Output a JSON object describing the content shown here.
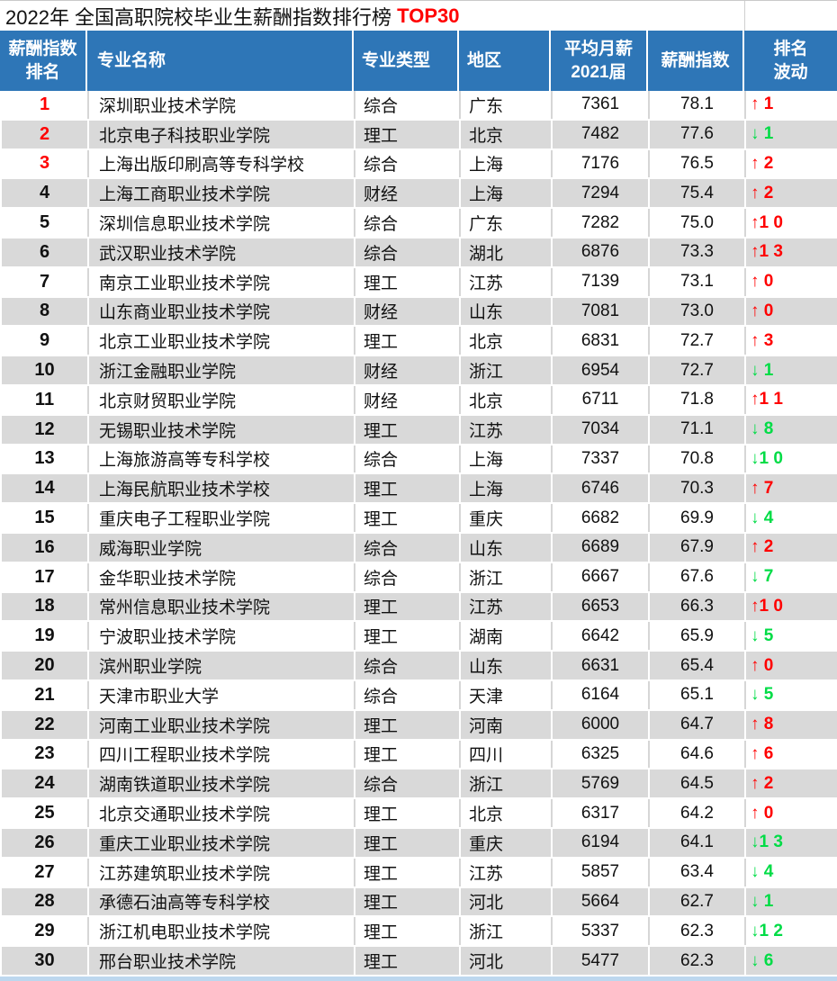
{
  "title": {
    "text": "2022年 全国高职院校毕业生薪酬指数排行榜 ",
    "highlight": "TOP30"
  },
  "colors": {
    "header_bg": "#2e76b7",
    "row_alt": "#d9d9d9",
    "rank_top3": "#ff0000",
    "up": "#ff0000",
    "down": "#00dc46",
    "bottom_strip": "#bdd7ee",
    "highlight": "#ff0000"
  },
  "table": {
    "columns": [
      {
        "id": "rank",
        "label": "薪酬指数\n排名"
      },
      {
        "id": "name",
        "label": "专业名称"
      },
      {
        "id": "type",
        "label": "专业类型"
      },
      {
        "id": "region",
        "label": "地区"
      },
      {
        "id": "salary",
        "label": "平均月薪\n2021届"
      },
      {
        "id": "index",
        "label": "薪酬指数"
      },
      {
        "id": "fluct",
        "label": "排名\n波动"
      }
    ],
    "rows": [
      {
        "rank": 1,
        "name": "深圳职业技术学院",
        "type": "综合",
        "region": "广东",
        "salary": "7361",
        "index": "78.1",
        "fluct": "↑ 1",
        "dir": "up"
      },
      {
        "rank": 2,
        "name": "北京电子科技职业学院",
        "type": "理工",
        "region": "北京",
        "salary": "7482",
        "index": "77.6",
        "fluct": "↓ 1",
        "dir": "down"
      },
      {
        "rank": 3,
        "name": "上海出版印刷高等专科学校",
        "type": "综合",
        "region": "上海",
        "salary": "7176",
        "index": "76.5",
        "fluct": "↑ 2",
        "dir": "up"
      },
      {
        "rank": 4,
        "name": "上海工商职业技术学院",
        "type": "财经",
        "region": "上海",
        "salary": "7294",
        "index": "75.4",
        "fluct": "↑ 2",
        "dir": "up"
      },
      {
        "rank": 5,
        "name": "深圳信息职业技术学院",
        "type": "综合",
        "region": "广东",
        "salary": "7282",
        "index": "75.0",
        "fluct": "↑1 0",
        "dir": "up"
      },
      {
        "rank": 6,
        "name": "武汉职业技术学院",
        "type": "综合",
        "region": "湖北",
        "salary": "6876",
        "index": "73.3",
        "fluct": "↑1 3",
        "dir": "up"
      },
      {
        "rank": 7,
        "name": "南京工业职业技术学院",
        "type": "理工",
        "region": "江苏",
        "salary": "7139",
        "index": "73.1",
        "fluct": "↑ 0",
        "dir": "up"
      },
      {
        "rank": 8,
        "name": "山东商业职业技术学院",
        "type": "财经",
        "region": "山东",
        "salary": "7081",
        "index": "73.0",
        "fluct": "↑ 0",
        "dir": "up"
      },
      {
        "rank": 9,
        "name": "北京工业职业技术学院",
        "type": "理工",
        "region": "北京",
        "salary": "6831",
        "index": "72.7",
        "fluct": "↑ 3",
        "dir": "up"
      },
      {
        "rank": 10,
        "name": "浙江金融职业学院",
        "type": "财经",
        "region": "浙江",
        "salary": "6954",
        "index": "72.7",
        "fluct": "↓ 1",
        "dir": "down"
      },
      {
        "rank": 11,
        "name": "北京财贸职业学院",
        "type": "财经",
        "region": "北京",
        "salary": "6711",
        "index": "71.8",
        "fluct": "↑1 1",
        "dir": "up"
      },
      {
        "rank": 12,
        "name": "无锡职业技术学院",
        "type": "理工",
        "region": "江苏",
        "salary": "7034",
        "index": "71.1",
        "fluct": "↓ 8",
        "dir": "down"
      },
      {
        "rank": 13,
        "name": "上海旅游高等专科学校",
        "type": "综合",
        "region": "上海",
        "salary": "7337",
        "index": "70.8",
        "fluct": "↓1 0",
        "dir": "down"
      },
      {
        "rank": 14,
        "name": "上海民航职业技术学校",
        "type": "理工",
        "region": "上海",
        "salary": "6746",
        "index": "70.3",
        "fluct": "↑ 7",
        "dir": "up"
      },
      {
        "rank": 15,
        "name": "重庆电子工程职业学院",
        "type": "理工",
        "region": "重庆",
        "salary": "6682",
        "index": "69.9",
        "fluct": "↓ 4",
        "dir": "down"
      },
      {
        "rank": 16,
        "name": "威海职业学院",
        "type": "综合",
        "region": "山东",
        "salary": "6689",
        "index": "67.9",
        "fluct": "↑ 2",
        "dir": "up"
      },
      {
        "rank": 17,
        "name": "金华职业技术学院",
        "type": "综合",
        "region": "浙江",
        "salary": "6667",
        "index": "67.6",
        "fluct": "↓ 7",
        "dir": "down"
      },
      {
        "rank": 18,
        "name": "常州信息职业技术学院",
        "type": "理工",
        "region": "江苏",
        "salary": "6653",
        "index": "66.3",
        "fluct": "↑1 0",
        "dir": "up"
      },
      {
        "rank": 19,
        "name": "宁波职业技术学院",
        "type": "理工",
        "region": "湖南",
        "salary": "6642",
        "index": "65.9",
        "fluct": "↓ 5",
        "dir": "down"
      },
      {
        "rank": 20,
        "name": "滨州职业学院",
        "type": "综合",
        "region": "山东",
        "salary": "6631",
        "index": "65.4",
        "fluct": "↑ 0",
        "dir": "up"
      },
      {
        "rank": 21,
        "name": "天津市职业大学",
        "type": "综合",
        "region": "天津",
        "salary": "6164",
        "index": "65.1",
        "fluct": "↓ 5",
        "dir": "down"
      },
      {
        "rank": 22,
        "name": "河南工业职业技术学院",
        "type": "理工",
        "region": "河南",
        "salary": "6000",
        "index": "64.7",
        "fluct": "↑ 8",
        "dir": "up"
      },
      {
        "rank": 23,
        "name": "四川工程职业技术学院",
        "type": "理工",
        "region": "四川",
        "salary": "6325",
        "index": "64.6",
        "fluct": "↑ 6",
        "dir": "up"
      },
      {
        "rank": 24,
        "name": "湖南铁道职业技术学院",
        "type": "综合",
        "region": "浙江",
        "salary": "5769",
        "index": "64.5",
        "fluct": "↑ 2",
        "dir": "up"
      },
      {
        "rank": 25,
        "name": "北京交通职业技术学院",
        "type": "理工",
        "region": "北京",
        "salary": "6317",
        "index": "64.2",
        "fluct": "↑ 0",
        "dir": "up"
      },
      {
        "rank": 26,
        "name": "重庆工业职业技术学院",
        "type": "理工",
        "region": "重庆",
        "salary": "6194",
        "index": "64.1",
        "fluct": "↓1 3",
        "dir": "down"
      },
      {
        "rank": 27,
        "name": "江苏建筑职业技术学院",
        "type": "理工",
        "region": "江苏",
        "salary": "5857",
        "index": "63.4",
        "fluct": "↓ 4",
        "dir": "down"
      },
      {
        "rank": 28,
        "name": "承德石油高等专科学校",
        "type": "理工",
        "region": "河北",
        "salary": "5664",
        "index": "62.7",
        "fluct": "↓ 1",
        "dir": "down"
      },
      {
        "rank": 29,
        "name": "浙江机电职业技术学院",
        "type": "理工",
        "region": "浙江",
        "salary": "5337",
        "index": "62.3",
        "fluct": "↓1 2",
        "dir": "down"
      },
      {
        "rank": 30,
        "name": "邢台职业技术学院",
        "type": "理工",
        "region": "河北",
        "salary": "5477",
        "index": "62.3",
        "fluct": "↓ 6",
        "dir": "down"
      }
    ]
  }
}
